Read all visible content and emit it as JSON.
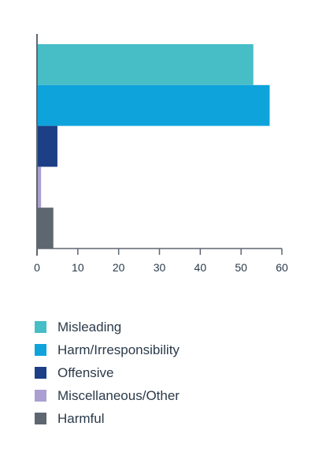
{
  "chart_data": {
    "type": "bar",
    "orientation": "horizontal",
    "categories": [
      "Misleading",
      "Harm/Irresponsibility",
      "Offensive",
      "Miscellaneous/Other",
      "Harmful"
    ],
    "values": [
      53,
      57,
      5,
      1,
      4
    ],
    "colors": [
      "#47bdc6",
      "#0fa3dc",
      "#1c3f85",
      "#ab9fd1",
      "#5e6770"
    ],
    "xlim": [
      0,
      60
    ],
    "xticks": [
      "0",
      "10",
      "20",
      "30",
      "40",
      "50",
      "60"
    ],
    "grid": false,
    "legend_placement": "bottom",
    "title": "",
    "xlabel": "",
    "ylabel": ""
  },
  "legend": {
    "items": [
      {
        "label": "Misleading",
        "color": "#47bdc6"
      },
      {
        "label": "Harm/Irresponsibility",
        "color": "#0fa3dc"
      },
      {
        "label": "Offensive",
        "color": "#1c3f85"
      },
      {
        "label": "Miscellaneous/Other",
        "color": "#ab9fd1"
      },
      {
        "label": "Harmful",
        "color": "#5e6770"
      }
    ]
  },
  "axis_color": "#5e6770"
}
